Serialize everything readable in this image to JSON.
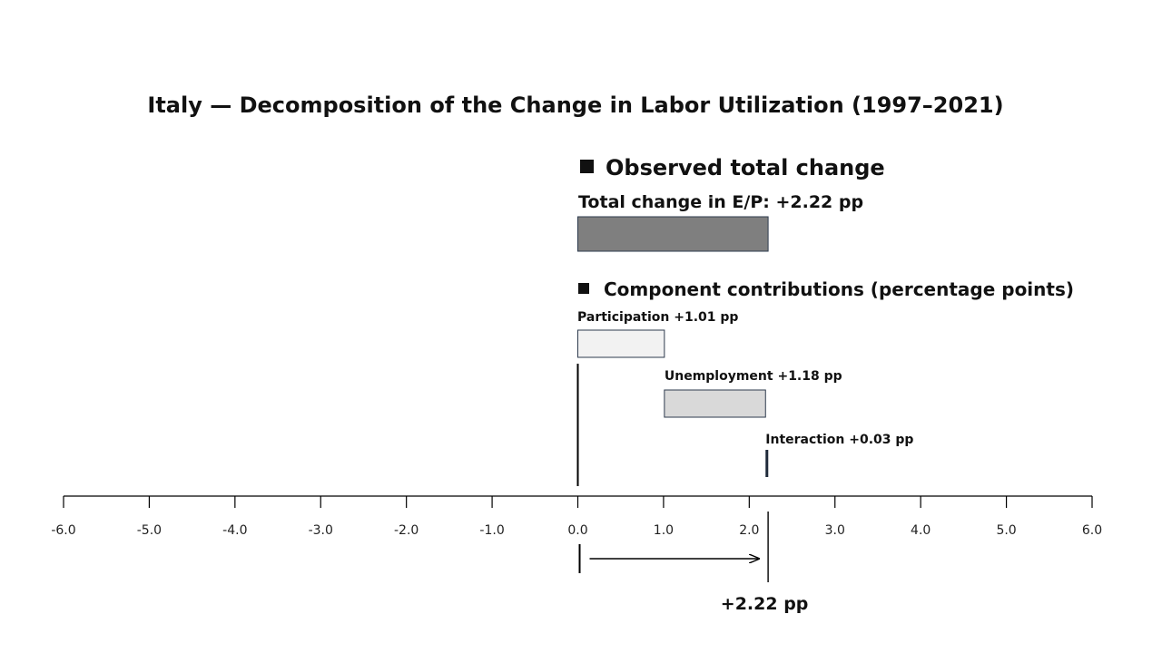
{
  "chart_data": {
    "type": "bar",
    "title": "Italy — Decomposition of the Change in Labor Utilization (1997–2021)",
    "xlim": [
      -6.0,
      6.0
    ],
    "ticks": [
      -6.0,
      -5.0,
      -4.0,
      -3.0,
      -2.0,
      -1.0,
      0.0,
      1.0,
      2.0,
      3.0,
      4.0,
      5.0,
      6.0
    ],
    "tick_labels": [
      "-6.0",
      "-5.0",
      "-4.0",
      "-3.0",
      "-2.0",
      "-1.0",
      "0.0",
      "1.0",
      "2.0",
      "3.0",
      "4.0",
      "5.0",
      "6.0"
    ],
    "grid": false,
    "total": {
      "heading": "Observed total change",
      "label": "Total change in E/P: +2.22 pp",
      "value": 2.22,
      "color": "#7f7f7f"
    },
    "components_heading": "Component contributions (percentage points)",
    "components": [
      {
        "name": "Participation",
        "label": "Participation +1.01 pp",
        "start": 0.0,
        "value": 1.01,
        "color": "#f2f2f2"
      },
      {
        "name": "Unemployment",
        "label": "Unemployment +1.18 pp",
        "start": 1.01,
        "value": 1.18,
        "color": "#d9d9d9"
      },
      {
        "name": "Interaction",
        "label": "Interaction +0.03 pp",
        "start": 2.19,
        "value": 0.03,
        "color": "#1f2a3a"
      }
    ],
    "total_annotation": "+2.22 pp",
    "colors": {
      "bar_edge": "#2e3b4e",
      "axis": "#000000"
    }
  }
}
